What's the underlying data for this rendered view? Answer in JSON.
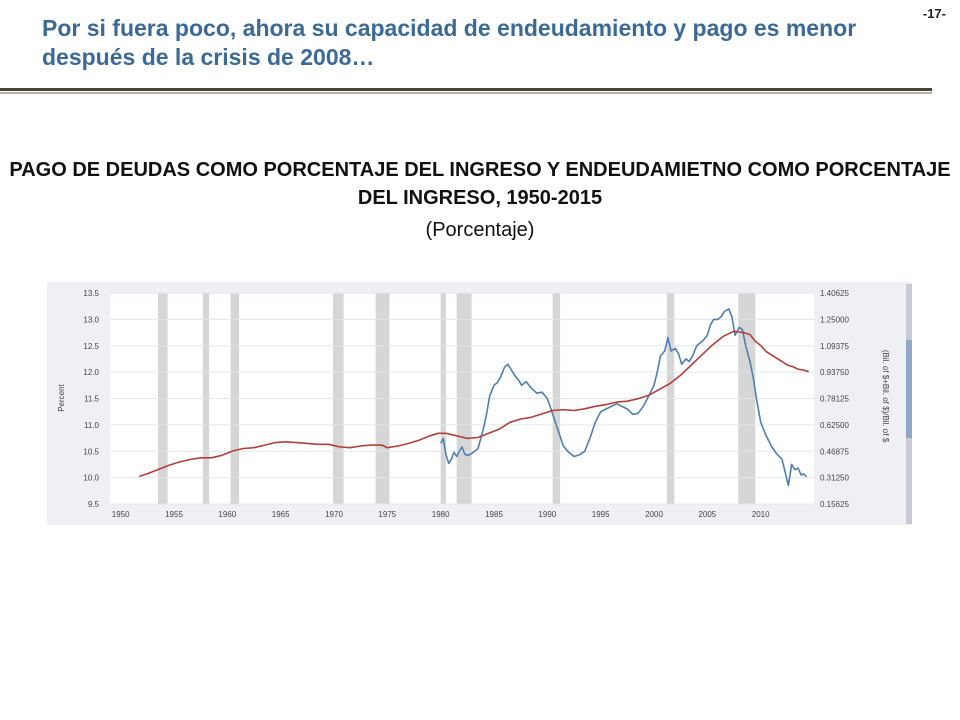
{
  "slide": {
    "title": "Por si fuera poco, ahora su capacidad de endeudamiento y pago es menor después de la crisis de 2008…",
    "number": "-17-"
  },
  "chart_heading": "PAGO DE DEUDAS COMO PORCENTAJE DEL INGRESO Y ENDEUDAMIETNO COMO PORCENTAJE DEL INGRESO, 1950-2015",
  "chart_subheading": "(Porcentaje)",
  "colors": {
    "title": "#3b6a96",
    "debt_service_line": "#4f7fb0",
    "debt_ratio_line": "#b0403a",
    "recession_bar": "#d6d6d6",
    "panel_background": "#eef0f3"
  },
  "chart_data": {
    "type": "line",
    "xlabel": "",
    "ylabel": "Percent",
    "y2label": "(Bil. of $+Bil. of $)/Bil. of $",
    "xlim": [
      1949,
      2015
    ],
    "ylim": [
      9.5,
      13.5
    ],
    "y2lim": [
      0.15625,
      1.40625
    ],
    "x_ticks": [
      "1950",
      "1955",
      "1960",
      "1965",
      "1970",
      "1975",
      "1980",
      "1985",
      "1990",
      "1995",
      "2000",
      "2005",
      "2010"
    ],
    "y_ticks": [
      "13.5",
      "13.0",
      "12.5",
      "12.0",
      "11.5",
      "11.0",
      "10.5",
      "10.0",
      "9.5"
    ],
    "y2_ticks": [
      "1.40625",
      "1.25000",
      "1.09375",
      "0.93750",
      "0.78125",
      "0.62500",
      "0.46875",
      "0.31250",
      "0.15625"
    ],
    "grid": true,
    "recessions": [
      [
        1953.5,
        1954.4
      ],
      [
        1957.7,
        1958.3
      ],
      [
        1960.3,
        1961.1
      ],
      [
        1969.9,
        1970.9
      ],
      [
        1973.9,
        1975.2
      ],
      [
        1980.0,
        1980.5
      ],
      [
        1981.5,
        1982.9
      ],
      [
        1990.5,
        1991.2
      ],
      [
        2001.2,
        2001.9
      ],
      [
        2007.9,
        2009.5
      ]
    ],
    "series": [
      {
        "axis": "left",
        "x": [
          1980.0,
          1980.25,
          1980.5,
          1980.75,
          1981.0,
          1981.25,
          1981.5,
          1981.75,
          1982.0,
          1982.25,
          1982.5,
          1982.75,
          1983.0,
          1983.5,
          1984.0,
          1984.3,
          1984.6,
          1985.0,
          1985.3,
          1985.6,
          1986.0,
          1986.3,
          1986.6,
          1987.0,
          1987.3,
          1987.6,
          1988.0,
          1988.5,
          1989.0,
          1989.5,
          1990.0,
          1990.5,
          1991.0,
          1991.5,
          1992.0,
          1992.5,
          1993.0,
          1993.5,
          1994.0,
          1994.5,
          1995.0,
          1995.5,
          1996.0,
          1996.5,
          1997.0,
          1997.5,
          1998.0,
          1998.5,
          1999.0,
          1999.5,
          2000.0,
          2000.3,
          2000.6,
          2001.0,
          2001.3,
          2001.6,
          2002.0,
          2002.3,
          2002.6,
          2003.0,
          2003.3,
          2003.6,
          2004.0,
          2004.3,
          2004.6,
          2005.0,
          2005.3,
          2005.6,
          2006.0,
          2006.3,
          2006.6,
          2007.0,
          2007.3,
          2007.6,
          2008.0,
          2008.3,
          2008.6,
          2009.0,
          2009.3,
          2009.6,
          2010.0,
          2010.5,
          2011.0,
          2011.5,
          2012.0,
          2012.3,
          2012.6,
          2012.9,
          2013.2,
          2013.5,
          2013.8,
          2014.0,
          2014.3
        ],
        "values": [
          10.65,
          10.74,
          10.43,
          10.27,
          10.35,
          10.48,
          10.4,
          10.5,
          10.58,
          10.45,
          10.42,
          10.44,
          10.47,
          10.55,
          10.92,
          11.2,
          11.55,
          11.75,
          11.8,
          11.9,
          12.1,
          12.15,
          12.05,
          11.92,
          11.85,
          11.75,
          11.82,
          11.7,
          11.6,
          11.62,
          11.5,
          11.2,
          10.9,
          10.6,
          10.48,
          10.4,
          10.43,
          10.5,
          10.75,
          11.05,
          11.25,
          11.3,
          11.35,
          11.4,
          11.35,
          11.3,
          11.2,
          11.22,
          11.35,
          11.55,
          11.75,
          12.0,
          12.3,
          12.4,
          12.65,
          12.4,
          12.45,
          12.35,
          12.15,
          12.25,
          12.2,
          12.3,
          12.5,
          12.55,
          12.6,
          12.7,
          12.9,
          13.0,
          13.0,
          13.05,
          13.15,
          13.2,
          13.05,
          12.7,
          12.85,
          12.8,
          12.5,
          12.2,
          11.9,
          11.5,
          11.05,
          10.8,
          10.6,
          10.45,
          10.35,
          10.1,
          9.85,
          10.25,
          10.15,
          10.18,
          10.05,
          10.07,
          10.02
        ]
      },
      {
        "axis": "right",
        "x": [
          1951.75,
          1952.5,
          1953.5,
          1954.5,
          1955.5,
          1956.5,
          1957.5,
          1958.5,
          1959.5,
          1960.5,
          1961.5,
          1962.5,
          1963.5,
          1964.5,
          1965.5,
          1966.5,
          1967.5,
          1968.5,
          1969.5,
          1970.5,
          1971.5,
          1972.5,
          1973.5,
          1974.5,
          1975.0,
          1976.0,
          1977.0,
          1978.0,
          1979.0,
          1979.75,
          1980.5,
          1981.5,
          1982.5,
          1983.5,
          1984.5,
          1985.5,
          1986.5,
          1987.5,
          1988.5,
          1989.5,
          1990.5,
          1991.5,
          1992.5,
          1993.5,
          1994.5,
          1995.5,
          1996.5,
          1997.5,
          1998.5,
          1999.5,
          2000.5,
          2001.5,
          2002.5,
          2003.5,
          2004.5,
          2005.5,
          2006.5,
          2007.0,
          2007.5,
          2008.0,
          2008.5,
          2009.0,
          2009.5,
          2010.0,
          2010.5,
          2011.0,
          2011.5,
          2012.0,
          2012.5,
          2013.0,
          2013.5,
          2014.0,
          2014.5
        ],
        "values": [
          0.32,
          0.335,
          0.36,
          0.385,
          0.405,
          0.42,
          0.43,
          0.43,
          0.445,
          0.47,
          0.485,
          0.49,
          0.505,
          0.52,
          0.525,
          0.52,
          0.515,
          0.51,
          0.51,
          0.495,
          0.49,
          0.5,
          0.505,
          0.505,
          0.49,
          0.5,
          0.515,
          0.535,
          0.56,
          0.575,
          0.575,
          0.56,
          0.545,
          0.55,
          0.575,
          0.6,
          0.64,
          0.66,
          0.67,
          0.69,
          0.71,
          0.715,
          0.71,
          0.72,
          0.735,
          0.745,
          0.76,
          0.765,
          0.78,
          0.8,
          0.835,
          0.87,
          0.92,
          0.98,
          1.04,
          1.1,
          1.15,
          1.165,
          1.18,
          1.175,
          1.17,
          1.16,
          1.12,
          1.095,
          1.06,
          1.04,
          1.02,
          1.0,
          0.98,
          0.97,
          0.955,
          0.95,
          0.94
        ]
      }
    ]
  }
}
